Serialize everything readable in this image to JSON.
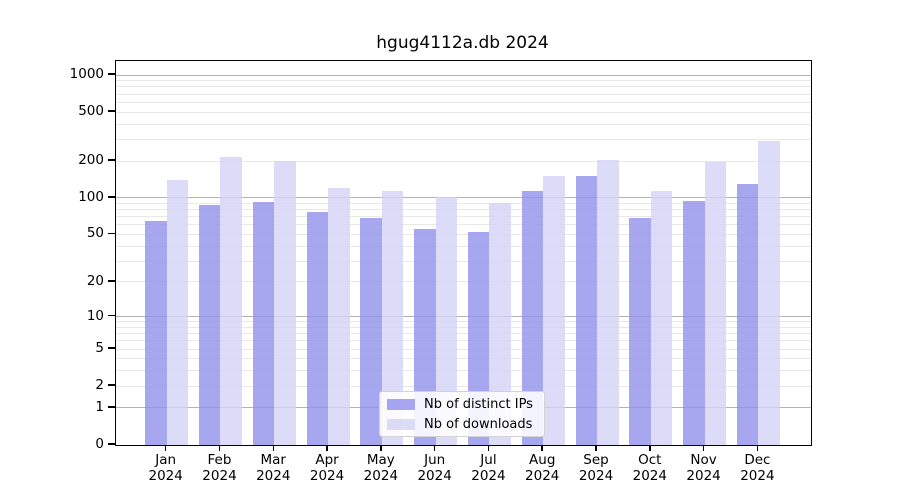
{
  "chart_data": {
    "type": "bar",
    "title": "hgug4112a.db 2024",
    "categories": [
      "Jan",
      "Feb",
      "Mar",
      "Apr",
      "May",
      "Jun",
      "Jul",
      "Aug",
      "Sep",
      "Oct",
      "Nov",
      "Dec"
    ],
    "x_year_label": "2024",
    "series": [
      {
        "name": "Nb of distinct IPs",
        "color": "#9191ec",
        "values": [
          64,
          87,
          92,
          77,
          68,
          56,
          52,
          114,
          150,
          68,
          95,
          130
        ]
      },
      {
        "name": "Nb of downloads",
        "color": "#d3d3f6",
        "values": [
          140,
          215,
          200,
          121,
          114,
          101,
          90,
          151,
          203,
          113,
          196,
          290
        ]
      }
    ],
    "y_ticks": [
      0,
      1,
      2,
      5,
      10,
      20,
      50,
      100,
      200,
      500,
      1000
    ],
    "y_scale": "log10(value+1)",
    "ylim": [
      0,
      1300
    ],
    "grid": true,
    "legend_position": "bottom-center",
    "axis_color": "#000000",
    "major_grid_color": "#b4b4b4",
    "minor_grid_color": "#e8e8e8"
  }
}
